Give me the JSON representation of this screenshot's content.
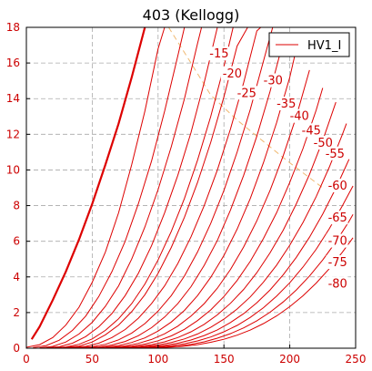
{
  "chart_data": {
    "type": "line",
    "title": "403 (Kellogg)",
    "xlim": [
      0,
      250
    ],
    "ylim": [
      0,
      18
    ],
    "x_ticks": [
      0,
      50,
      100,
      150,
      200,
      250
    ],
    "y_ticks": [
      0,
      2,
      4,
      6,
      8,
      10,
      12,
      14,
      16,
      18
    ],
    "grid": true,
    "legend": {
      "position": "top-right",
      "entries": [
        "HV1_I"
      ]
    },
    "colors": {
      "curves": "#dd0000",
      "axis_text": "#cc0000",
      "grid": "#aaaaaa",
      "dashed_locus": "#f0b870"
    },
    "series": [
      {
        "name": "HV1_I",
        "bold": true,
        "x": [
          4,
          10,
          20,
          30,
          40,
          50,
          60,
          70,
          80,
          90
        ],
        "y": [
          0.5,
          1.2,
          2.7,
          4.3,
          6.1,
          8.1,
          10.3,
          12.6,
          15.2,
          18.0
        ]
      }
    ],
    "curves": [
      {
        "label": "",
        "x": [
          0,
          10,
          20,
          30,
          40,
          50,
          60,
          70,
          80,
          90,
          100,
          105
        ],
        "y": [
          0.05,
          0.2,
          0.6,
          1.3,
          2.3,
          3.7,
          5.4,
          7.6,
          10.3,
          13.3,
          16.8,
          18.0
        ]
      },
      {
        "label": "",
        "x": [
          5,
          15,
          25,
          35,
          45,
          55,
          65,
          75,
          85,
          95,
          105,
          115,
          120
        ],
        "y": [
          0.03,
          0.15,
          0.45,
          1.0,
          1.8,
          2.9,
          4.3,
          6.0,
          8.1,
          10.5,
          13.3,
          16.4,
          18.0
        ]
      },
      {
        "label": "",
        "x": [
          10,
          20,
          30,
          40,
          50,
          60,
          70,
          80,
          90,
          100,
          110,
          120,
          130,
          133
        ],
        "y": [
          0.02,
          0.1,
          0.35,
          0.8,
          1.45,
          2.35,
          3.5,
          5.0,
          6.8,
          8.9,
          11.3,
          14.0,
          17.1,
          18.0
        ]
      },
      {
        "label": "",
        "x": [
          15,
          25,
          35,
          45,
          55,
          65,
          75,
          85,
          95,
          105,
          115,
          125,
          135,
          145
        ],
        "y": [
          0.02,
          0.08,
          0.28,
          0.65,
          1.2,
          1.95,
          2.95,
          4.2,
          5.75,
          7.6,
          9.7,
          12.1,
          14.9,
          18.0
        ]
      },
      {
        "label": "-15",
        "x": [
          20,
          30,
          40,
          50,
          60,
          70,
          80,
          90,
          100,
          110,
          120,
          130,
          140,
          150,
          157
        ],
        "y": [
          0.02,
          0.07,
          0.22,
          0.52,
          1.0,
          1.65,
          2.5,
          3.6,
          4.95,
          6.55,
          8.4,
          10.55,
          13.0,
          15.8,
          18.0
        ]
      },
      {
        "label": "-20",
        "x": [
          25,
          40,
          50,
          60,
          70,
          80,
          90,
          100,
          110,
          120,
          130,
          140,
          150,
          160,
          168
        ],
        "y": [
          0.02,
          0.12,
          0.35,
          0.75,
          1.3,
          2.05,
          3.0,
          4.2,
          5.65,
          7.35,
          9.3,
          11.55,
          14.1,
          16.95,
          18.0
        ]
      },
      {
        "label": "-25",
        "x": [
          30,
          45,
          55,
          65,
          75,
          85,
          95,
          105,
          115,
          125,
          135,
          145,
          155,
          165,
          175,
          178
        ],
        "y": [
          0.02,
          0.1,
          0.28,
          0.6,
          1.05,
          1.68,
          2.5,
          3.5,
          4.75,
          6.25,
          8.0,
          10.0,
          12.3,
          14.9,
          17.8,
          18.0
        ]
      },
      {
        "label": "-30",
        "x": [
          35,
          50,
          60,
          70,
          80,
          90,
          100,
          110,
          120,
          130,
          140,
          150,
          160,
          170,
          180,
          187
        ],
        "y": [
          0.02,
          0.08,
          0.22,
          0.47,
          0.85,
          1.38,
          2.08,
          2.95,
          4.05,
          5.4,
          7.0,
          8.85,
          11.0,
          13.4,
          16.1,
          18.0
        ]
      },
      {
        "label": "-35",
        "x": [
          40,
          55,
          65,
          75,
          85,
          95,
          105,
          115,
          125,
          135,
          145,
          155,
          165,
          175,
          185,
          195
        ],
        "y": [
          0.02,
          0.07,
          0.18,
          0.38,
          0.7,
          1.15,
          1.75,
          2.5,
          3.45,
          4.65,
          6.05,
          7.75,
          9.7,
          11.9,
          14.4,
          17.2
        ]
      },
      {
        "label": "-40",
        "x": [
          45,
          60,
          70,
          80,
          90,
          100,
          110,
          120,
          130,
          140,
          150,
          160,
          170,
          180,
          190,
          200,
          205
        ],
        "y": [
          0.02,
          0.06,
          0.15,
          0.32,
          0.58,
          0.96,
          1.47,
          2.12,
          2.95,
          3.98,
          5.2,
          6.68,
          8.4,
          10.4,
          12.65,
          15.2,
          16.8
        ]
      },
      {
        "label": "-45",
        "x": [
          50,
          65,
          75,
          85,
          95,
          105,
          115,
          125,
          135,
          145,
          155,
          165,
          175,
          185,
          195,
          205,
          215
        ],
        "y": [
          0.02,
          0.05,
          0.13,
          0.27,
          0.49,
          0.81,
          1.24,
          1.8,
          2.5,
          3.37,
          4.42,
          5.68,
          7.15,
          8.85,
          10.8,
          13.0,
          15.6
        ]
      },
      {
        "label": "-50",
        "x": [
          55,
          70,
          80,
          90,
          100,
          110,
          120,
          130,
          140,
          150,
          160,
          170,
          180,
          190,
          200,
          210,
          220,
          225
        ],
        "y": [
          0.02,
          0.05,
          0.11,
          0.23,
          0.42,
          0.69,
          1.06,
          1.55,
          2.15,
          2.9,
          3.8,
          4.88,
          6.15,
          7.6,
          9.3,
          11.2,
          13.35,
          14.6
        ]
      },
      {
        "label": "-55",
        "x": [
          60,
          75,
          85,
          95,
          105,
          115,
          125,
          135,
          145,
          155,
          165,
          175,
          185,
          195,
          205,
          215,
          225,
          235
        ],
        "y": [
          0.02,
          0.04,
          0.1,
          0.2,
          0.36,
          0.6,
          0.92,
          1.34,
          1.87,
          2.52,
          3.3,
          4.24,
          5.35,
          6.62,
          8.1,
          9.75,
          11.65,
          13.8
        ]
      },
      {
        "label": "-60",
        "x": [
          65,
          80,
          90,
          100,
          110,
          120,
          130,
          140,
          150,
          160,
          170,
          180,
          190,
          200,
          210,
          220,
          230,
          240,
          243
        ],
        "y": [
          0.02,
          0.04,
          0.09,
          0.18,
          0.32,
          0.52,
          0.8,
          1.17,
          1.63,
          2.2,
          2.88,
          3.7,
          4.66,
          5.78,
          7.05,
          8.5,
          10.15,
          12.0,
          12.6
        ]
      },
      {
        "label": "-65",
        "x": [
          70,
          85,
          95,
          105,
          115,
          125,
          135,
          145,
          155,
          165,
          175,
          185,
          195,
          205,
          215,
          225,
          235,
          245
        ],
        "y": [
          0.02,
          0.04,
          0.08,
          0.16,
          0.28,
          0.46,
          0.71,
          1.03,
          1.44,
          1.94,
          2.55,
          3.27,
          4.12,
          5.1,
          6.23,
          7.52,
          8.98,
          10.6
        ]
      },
      {
        "label": "-70",
        "x": [
          75,
          90,
          100,
          110,
          120,
          130,
          140,
          150,
          160,
          170,
          180,
          190,
          200,
          210,
          220,
          230,
          240,
          248
        ],
        "y": [
          0.02,
          0.03,
          0.07,
          0.14,
          0.25,
          0.41,
          0.63,
          0.92,
          1.28,
          1.73,
          2.27,
          2.92,
          3.67,
          4.55,
          5.55,
          6.7,
          8.0,
          9.1
        ]
      },
      {
        "label": "-75",
        "x": [
          80,
          95,
          105,
          115,
          125,
          135,
          145,
          155,
          165,
          175,
          185,
          195,
          205,
          215,
          225,
          235,
          245,
          248
        ],
        "y": [
          0.02,
          0.03,
          0.06,
          0.12,
          0.22,
          0.36,
          0.56,
          0.82,
          1.14,
          1.54,
          2.02,
          2.6,
          3.27,
          4.05,
          4.95,
          5.97,
          7.12,
          7.5
        ]
      },
      {
        "label": "-80",
        "x": [
          85,
          100,
          110,
          120,
          130,
          140,
          150,
          160,
          170,
          180,
          190,
          200,
          210,
          220,
          230,
          240,
          248
        ],
        "y": [
          0.02,
          0.03,
          0.06,
          0.11,
          0.2,
          0.33,
          0.5,
          0.73,
          1.02,
          1.38,
          1.81,
          2.33,
          2.94,
          3.65,
          4.46,
          5.39,
          6.2
        ]
      }
    ],
    "label_positions": [
      {
        "label": "-15",
        "x": 139,
        "y": 16.3
      },
      {
        "label": "-20",
        "x": 149,
        "y": 15.2
      },
      {
        "label": "-25",
        "x": 160,
        "y": 14.1
      },
      {
        "label": "-30",
        "x": 180,
        "y": 14.8
      },
      {
        "label": "-35",
        "x": 190,
        "y": 13.5
      },
      {
        "label": "-40",
        "x": 200,
        "y": 12.8
      },
      {
        "label": "-45",
        "x": 209,
        "y": 12.0
      },
      {
        "label": "-50",
        "x": 218,
        "y": 11.3
      },
      {
        "label": "-55",
        "x": 227,
        "y": 10.7
      },
      {
        "label": "-60",
        "x": 229,
        "y": 8.9
      },
      {
        "label": "-65",
        "x": 229,
        "y": 7.1
      },
      {
        "label": "-70",
        "x": 229,
        "y": 5.8
      },
      {
        "label": "-75",
        "x": 229,
        "y": 4.6
      },
      {
        "label": "-80",
        "x": 229,
        "y": 3.4
      }
    ],
    "dashed_locus": {
      "x": [
        108,
        125,
        140,
        160,
        180,
        200,
        225
      ],
      "y": [
        18,
        16.0,
        14.2,
        12.8,
        11.6,
        10.4,
        9.0
      ]
    }
  }
}
